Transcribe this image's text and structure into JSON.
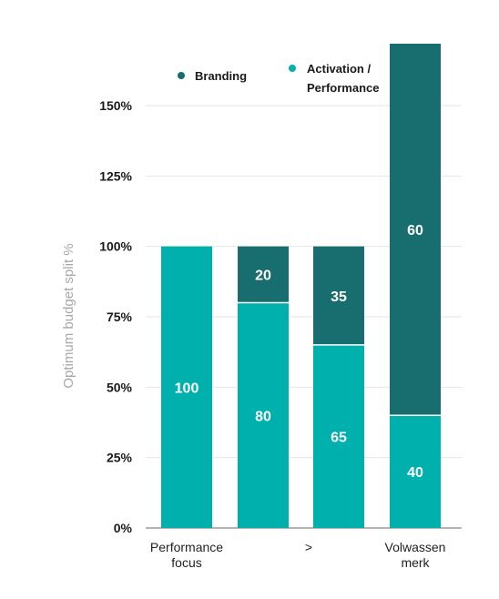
{
  "chart_data": {
    "type": "bar",
    "stacked": true,
    "categories": [
      [
        "Performance",
        "focus"
      ],
      [],
      [
        ">"
      ],
      [
        "Volwassen",
        "merk"
      ]
    ],
    "series": [
      {
        "name": "Activation / Performance",
        "legend_lines": [
          "Activation /",
          "Performance"
        ],
        "color": "#00b0ad",
        "values": [
          100,
          80,
          65,
          40
        ]
      },
      {
        "name": "Branding",
        "legend_lines": [
          "Branding"
        ],
        "color": "#186e6e",
        "values": [
          0,
          20,
          35,
          60
        ]
      }
    ],
    "ylabel": "Optimum budget split %",
    "yticks": [
      "0%",
      "25%",
      "50%",
      "75%",
      "100%",
      "125%",
      "150%"
    ],
    "ytick_values": [
      0,
      25,
      50,
      75,
      100,
      125,
      150
    ],
    "ylim": [
      0,
      150
    ],
    "grid": true,
    "legend": "top"
  }
}
